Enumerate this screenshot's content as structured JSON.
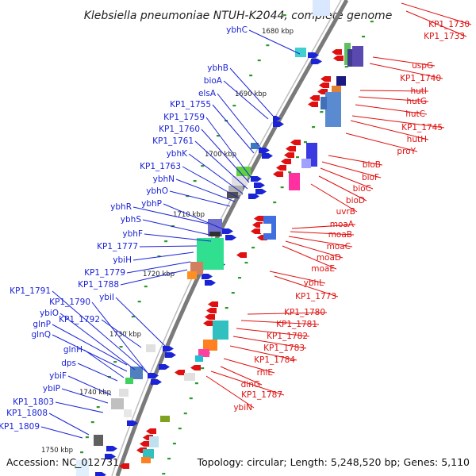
{
  "title": "Klebsiella pneumoniae NTUH-K2044, complete genome",
  "accession": "Accession: NC_012731",
  "summary": "Topology: circular; Length: 5,248,520 bp; Genes: 5,110",
  "colors": {
    "backbone": "#7a7a7a",
    "forward": "#1a23d6",
    "reverse": "#e01010",
    "tick": "#2a9a2a"
  },
  "kbp_labels": [
    {
      "text": "1680 kbp"
    },
    {
      "text": "1690 kbp"
    },
    {
      "text": "1700 kbp"
    },
    {
      "text": "1710 kbp"
    },
    {
      "text": "1720 kbp"
    },
    {
      "text": "1730 kbp"
    },
    {
      "text": "1740 kbp"
    },
    {
      "text": "1750 kbp"
    }
  ],
  "left_genes": [
    "ybhC",
    "ybhB",
    "bioA",
    "elsA",
    "KP1_1755",
    "KP1_1759",
    "KP1_1760",
    "KP1_1761",
    "ybhK",
    "KP1_1763",
    "ybhN",
    "ybhO",
    "ybhP",
    "ybhR",
    "ybhS",
    "ybhF",
    "KP1_1777",
    "ybiH",
    "KP1_1779",
    "KP1_1788",
    "ybiI",
    "KP1_1791",
    "KP1_1790",
    "ybiO",
    "KP1_1792",
    "glnP",
    "glnQ",
    "glnH",
    "dps",
    "ybiF",
    "ybiP",
    "KP1_1803",
    "KP1_1808",
    "KP1_1809"
  ],
  "right_genes": [
    "KP1_1730",
    "KP1_1733",
    "uspG",
    "KP1_1740",
    "hutI",
    "hutG",
    "hutC",
    "KP1_1745",
    "hutH",
    "proY",
    "bioB",
    "bioF",
    "bioC",
    "bioD",
    "uvrB",
    "moaA",
    "moaB",
    "moaC",
    "moaD",
    "moaE",
    "ybhL",
    "KP1_1773",
    "KP1_1780",
    "KP1_1781",
    "KP1_1782",
    "KP1_1783",
    "KP1_1784",
    "rhlE",
    "dinG",
    "KP1_1787",
    "ybiN"
  ]
}
